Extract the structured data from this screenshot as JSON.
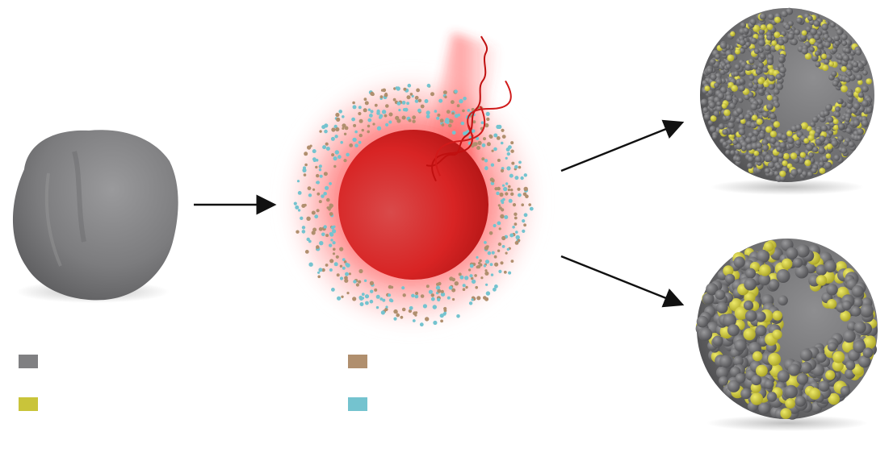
{
  "colors": {
    "substrate_gray": "#808082",
    "decoration_yellow": "#c9c43a",
    "precursor_brown": "#b08f6e",
    "precursor_cyan": "#74c3cf",
    "laser_red": "#e01e1e",
    "arrow": "#111111"
  },
  "legend": [
    {
      "key": "gray",
      "label": ""
    },
    {
      "key": "yellow",
      "label": ""
    },
    {
      "key": "brown",
      "label": ""
    },
    {
      "key": "cyan",
      "label": ""
    }
  ],
  "diagram": {
    "stages": [
      "irregular-particle",
      "laser-irradiated-sphere",
      "small-cluster-decorated-sphere",
      "large-cluster-decorated-sphere"
    ],
    "arrows": 3
  }
}
